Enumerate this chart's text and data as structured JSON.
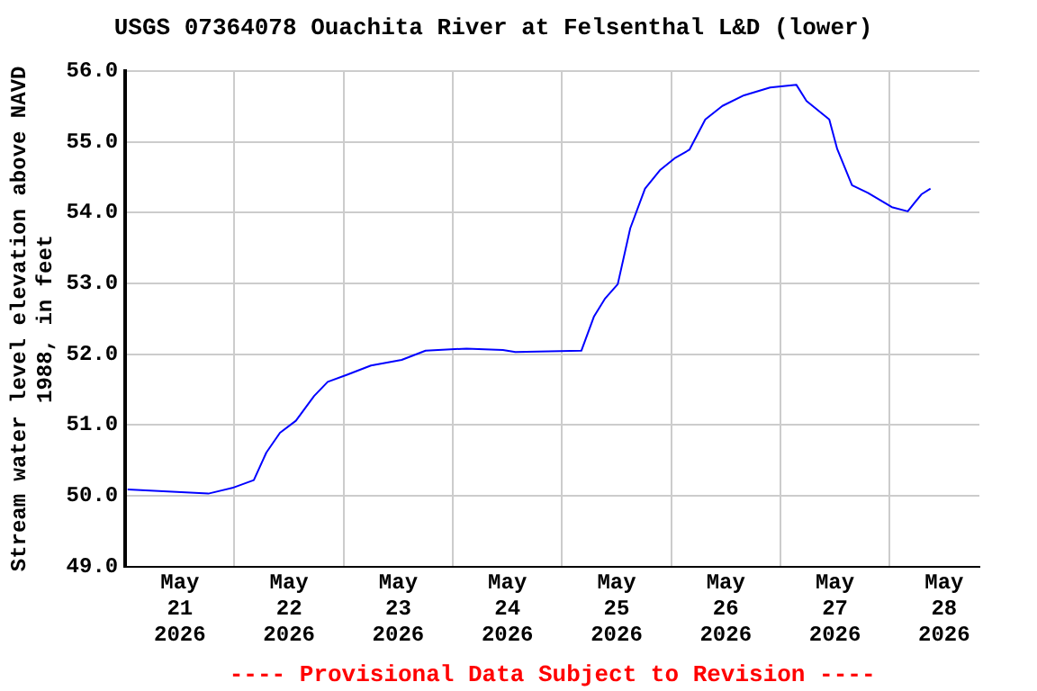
{
  "chart_data": {
    "type": "line",
    "title": "USGS 07364078 Ouachita River at Felsenthal L&D (lower)",
    "ylabel": "Stream water level elevation above NAVD 1988, in feet",
    "annotations": [
      "---- Provisional Data Subject to Revision ----"
    ],
    "x": [
      "2026-05-21T00:30",
      "2026-05-21T18:15",
      "2026-05-21T23:30",
      "2026-05-22T04:15",
      "2026-05-22T07:00",
      "2026-05-22T10:00",
      "2026-05-22T13:30",
      "2026-05-22T17:30",
      "2026-05-22T20:30",
      "2026-05-23T00:45",
      "2026-05-23T06:00",
      "2026-05-23T12:45",
      "2026-05-23T18:00",
      "2026-05-24T03:00",
      "2026-05-24T11:00",
      "2026-05-24T13:45",
      "2026-05-25T04:15",
      "2026-05-25T07:00",
      "2026-05-25T09:30",
      "2026-05-25T12:15",
      "2026-05-25T15:00",
      "2026-05-25T18:15",
      "2026-05-25T21:30",
      "2026-05-26T00:45",
      "2026-05-26T04:00",
      "2026-05-26T07:30",
      "2026-05-26T11:15",
      "2026-05-26T16:00",
      "2026-05-26T21:45",
      "2026-05-27T03:30",
      "2026-05-27T05:45",
      "2026-05-27T10:45",
      "2026-05-27T12:30",
      "2026-05-27T15:45",
      "2026-05-27T19:15",
      "2026-05-28T00:30",
      "2026-05-28T04:00",
      "2026-05-28T07:00",
      "2026-05-28T09:00"
    ],
    "series": [
      {
        "color": "#0000ff",
        "values": [
          50.09,
          50.03,
          50.11,
          50.22,
          50.61,
          50.89,
          51.06,
          51.41,
          51.61,
          51.71,
          51.84,
          51.92,
          52.05,
          52.08,
          52.06,
          52.03,
          52.05,
          52.53,
          52.79,
          52.99,
          53.78,
          54.34,
          54.6,
          54.77,
          54.89,
          55.32,
          55.51,
          55.66,
          55.77,
          55.81,
          55.58,
          55.32,
          54.9,
          54.39,
          54.28,
          54.08,
          54.02,
          54.26,
          54.34
        ]
      }
    ],
    "xlim": [
      "2026-05-21T00:00",
      "2026-05-28T19:45"
    ],
    "xticks": [
      {
        "value": "2026-05-21T12:00",
        "label": "May 21 2026"
      },
      {
        "value": "2026-05-22T00:00",
        "label": null
      },
      {
        "value": "2026-05-22T12:00",
        "label": "May 22 2026"
      },
      {
        "value": "2026-05-23T00:00",
        "label": null
      },
      {
        "value": "2026-05-23T12:00",
        "label": "May 23 2026"
      },
      {
        "value": "2026-05-24T00:00",
        "label": null
      },
      {
        "value": "2026-05-24T12:00",
        "label": "May 24 2026"
      },
      {
        "value": "2026-05-25T00:00",
        "label": null
      },
      {
        "value": "2026-05-25T12:00",
        "label": "May 25 2026"
      },
      {
        "value": "2026-05-26T00:00",
        "label": null
      },
      {
        "value": "2026-05-26T12:00",
        "label": "May 26 2026"
      },
      {
        "value": "2026-05-27T00:00",
        "label": null
      },
      {
        "value": "2026-05-27T12:00",
        "label": "May 27 2026"
      },
      {
        "value": "2026-05-28T00:00",
        "label": null
      },
      {
        "value": "2026-05-28T12:00",
        "label": "May 28 2026"
      }
    ],
    "ylim": [
      49,
      56
    ],
    "yticks": [
      {
        "value": 49,
        "label": "49.0"
      },
      {
        "value": 50,
        "label": "50.0"
      },
      {
        "value": 51,
        "label": "51.0"
      },
      {
        "value": 52,
        "label": "52.0"
      },
      {
        "value": 53,
        "label": "53.0"
      },
      {
        "value": 54,
        "label": "54.0"
      },
      {
        "value": 55,
        "label": "55.0"
      },
      {
        "value": 56,
        "label": "56.0"
      }
    ],
    "grid": true,
    "legend": false,
    "marker": "none",
    "line_style": "solid"
  }
}
